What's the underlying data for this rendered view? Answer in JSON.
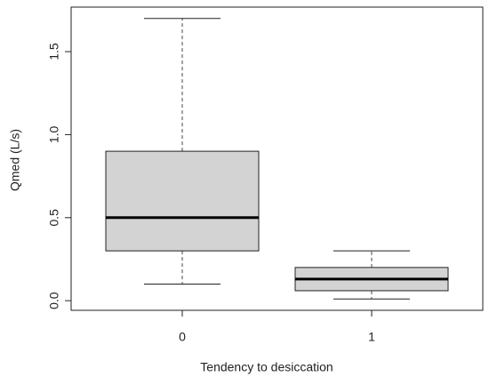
{
  "chart_data": {
    "type": "boxplot",
    "x_label": "Tendency to desiccation",
    "y_label": "Qmed (L/s)",
    "categories": [
      "0",
      "1"
    ],
    "min": [
      0.1,
      0.01
    ],
    "q1": [
      0.3,
      0.06
    ],
    "median": [
      0.5,
      0.13
    ],
    "q3": [
      0.9,
      0.2
    ],
    "max": [
      1.7,
      0.3
    ],
    "color": "#d3d3d3",
    "ylim": [
      -0.058,
      1.768
    ],
    "yticks": [
      {
        "value": 0,
        "label": "0.0"
      },
      {
        "value": 0.5,
        "label": "0.5"
      },
      {
        "value": 1,
        "label": "1.0"
      },
      {
        "value": 1.5,
        "label": "1.5"
      }
    ]
  }
}
